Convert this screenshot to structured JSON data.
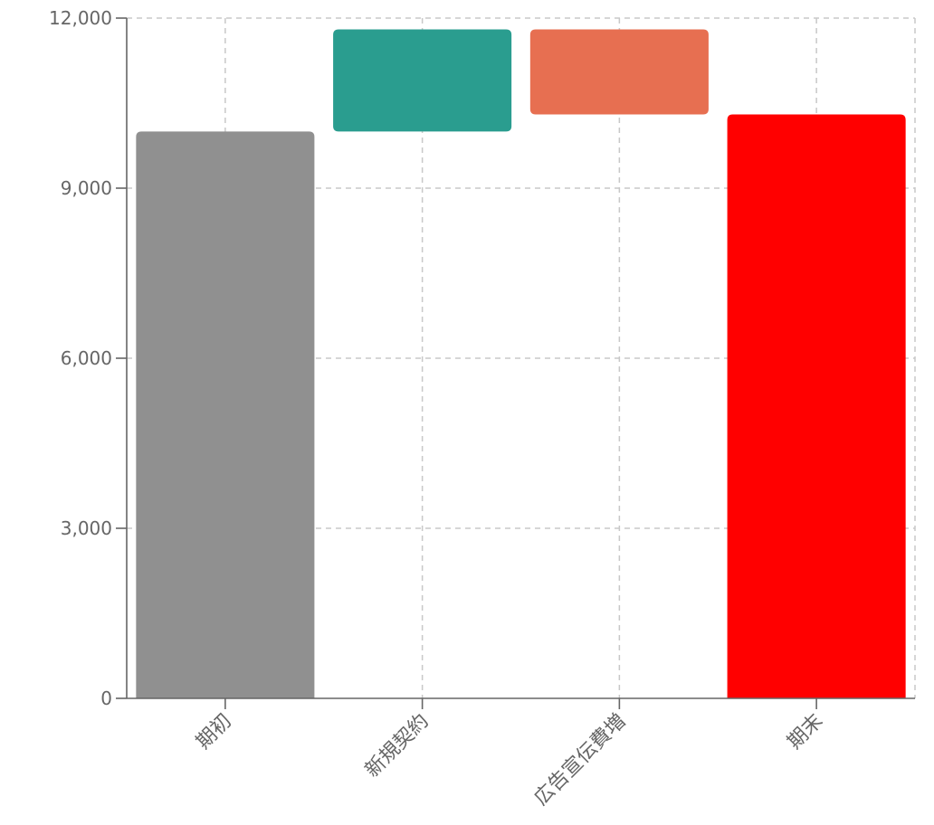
{
  "chart_data": {
    "type": "bar",
    "subtype": "waterfall",
    "title": "",
    "xlabel": "",
    "ylabel": "",
    "ylim": [
      0,
      12000
    ],
    "yticks": [
      0,
      3000,
      6000,
      9000,
      12000
    ],
    "ytick_labels": [
      "0",
      "3,000",
      "6,000",
      "9,000",
      "12,000"
    ],
    "grid": true,
    "legend": "none",
    "categories": [
      "期初",
      "新規契約",
      "広告宣伝費増",
      "期末"
    ],
    "bars": [
      {
        "category": "期初",
        "start": 0,
        "end": 10000,
        "kind": "total",
        "color": "#909090"
      },
      {
        "category": "新規契約",
        "start": 10000,
        "end": 11800,
        "kind": "increase",
        "color": "#2a9d8f"
      },
      {
        "category": "広告宣伝費増",
        "start": 11800,
        "end": 10300,
        "kind": "decrease",
        "color": "#e76f51"
      },
      {
        "category": "期末",
        "start": 0,
        "end": 10300,
        "kind": "total",
        "color": "#ff0000"
      }
    ]
  }
}
